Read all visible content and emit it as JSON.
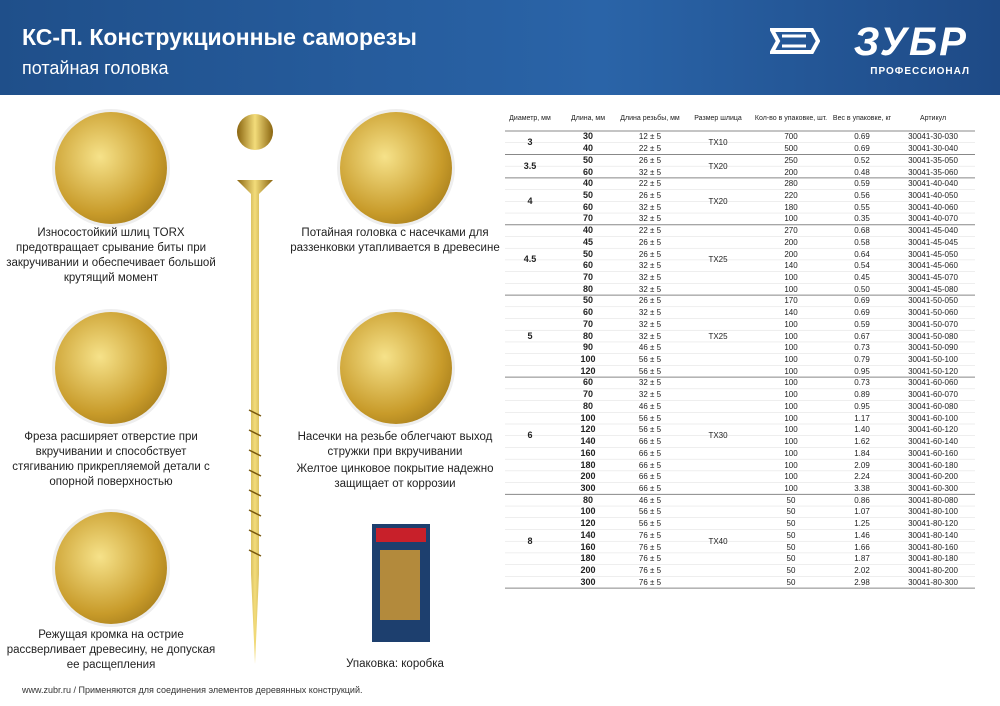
{
  "header": {
    "title": "КС-П. Конструкционные саморезы",
    "subtitle": "потайная головка",
    "brand": "ЗУБР",
    "brand_sub": "ПРОФЕССИОНАЛ"
  },
  "features": {
    "left": [
      "Износостойкий шлиц TORX предотвращает срывание биты при закручивании и обеспечивает большой крутящий момент",
      "Фреза расширяет отверстие при вкручивании и способствует стягиванию прикрепляемой детали с опорной поверхностью",
      "Режущая кромка на острие рассверливает древесину, не допуская ее расщепления"
    ],
    "right": [
      "Потайная головка с насечками для раззенковки утапливается в древесине",
      "Насечки на резьбе облегчают выход стружки при вкручивании",
      "Желтое цинковое покрытие надежно защищает от коррозии",
      "Упаковка: коробка"
    ]
  },
  "table": {
    "columns": [
      "Диаметр, мм",
      "Длина, мм",
      "Длина резьбы, мм",
      "Размер шлица",
      "Кол-во в упаковке, шт.",
      "Вес в упаковке, кг",
      "Артикул"
    ],
    "groups": [
      {
        "diameter": "3",
        "slot": "TX10",
        "rows": [
          [
            "30",
            "12 ± 5",
            "700",
            "0.69",
            "30041-30-030"
          ],
          [
            "40",
            "22 ± 5",
            "500",
            "0.69",
            "30041-30-040"
          ]
        ]
      },
      {
        "diameter": "3.5",
        "slot": "TX20",
        "rows": [
          [
            "50",
            "26 ± 5",
            "250",
            "0.52",
            "30041-35-050"
          ],
          [
            "60",
            "32 ± 5",
            "200",
            "0.48",
            "30041-35-060"
          ]
        ]
      },
      {
        "diameter": "4",
        "slot": "TX20",
        "rows": [
          [
            "40",
            "22 ± 5",
            "280",
            "0.59",
            "30041-40-040"
          ],
          [
            "50",
            "26 ± 5",
            "220",
            "0.56",
            "30041-40-050"
          ],
          [
            "60",
            "32 ± 5",
            "180",
            "0.55",
            "30041-40-060"
          ],
          [
            "70",
            "32 ± 5",
            "100",
            "0.35",
            "30041-40-070"
          ]
        ]
      },
      {
        "diameter": "4.5",
        "slot": "TX25",
        "rows": [
          [
            "40",
            "22 ± 5",
            "270",
            "0.68",
            "30041-45-040"
          ],
          [
            "45",
            "26 ± 5",
            "200",
            "0.58",
            "30041-45-045"
          ],
          [
            "50",
            "26 ± 5",
            "200",
            "0.64",
            "30041-45-050"
          ],
          [
            "60",
            "32 ± 5",
            "140",
            "0.54",
            "30041-45-060"
          ],
          [
            "70",
            "32 ± 5",
            "100",
            "0.45",
            "30041-45-070"
          ],
          [
            "80",
            "32 ± 5",
            "100",
            "0.50",
            "30041-45-080"
          ]
        ]
      },
      {
        "diameter": "5",
        "slot": "TX25",
        "rows": [
          [
            "50",
            "26 ± 5",
            "170",
            "0.69",
            "30041-50-050"
          ],
          [
            "60",
            "32 ± 5",
            "140",
            "0.69",
            "30041-50-060"
          ],
          [
            "70",
            "32 ± 5",
            "100",
            "0.59",
            "30041-50-070"
          ],
          [
            "80",
            "32 ± 5",
            "100",
            "0.67",
            "30041-50-080"
          ],
          [
            "90",
            "46 ± 5",
            "100",
            "0.73",
            "30041-50-090"
          ],
          [
            "100",
            "56 ± 5",
            "100",
            "0.79",
            "30041-50-100"
          ],
          [
            "120",
            "56 ± 5",
            "100",
            "0.95",
            "30041-50-120"
          ]
        ]
      },
      {
        "diameter": "6",
        "slot": "TX30",
        "rows": [
          [
            "60",
            "32 ± 5",
            "100",
            "0.73",
            "30041-60-060"
          ],
          [
            "70",
            "32 ± 5",
            "100",
            "0.89",
            "30041-60-070"
          ],
          [
            "80",
            "46 ± 5",
            "100",
            "0.95",
            "30041-60-080"
          ],
          [
            "100",
            "56 ± 5",
            "100",
            "1.17",
            "30041-60-100"
          ],
          [
            "120",
            "56 ± 5",
            "100",
            "1.40",
            "30041-60-120"
          ],
          [
            "140",
            "66 ± 5",
            "100",
            "1.62",
            "30041-60-140"
          ],
          [
            "160",
            "66 ± 5",
            "100",
            "1.84",
            "30041-60-160"
          ],
          [
            "180",
            "66 ± 5",
            "100",
            "2.09",
            "30041-60-180"
          ],
          [
            "200",
            "66 ± 5",
            "100",
            "2.24",
            "30041-60-200"
          ],
          [
            "300",
            "66 ± 5",
            "100",
            "3.38",
            "30041-60-300"
          ]
        ]
      },
      {
        "diameter": "8",
        "slot": "TX40",
        "rows": [
          [
            "80",
            "46 ± 5",
            "50",
            "0.86",
            "30041-80-080"
          ],
          [
            "100",
            "56 ± 5",
            "50",
            "1.07",
            "30041-80-100"
          ],
          [
            "120",
            "56 ± 5",
            "50",
            "1.25",
            "30041-80-120"
          ],
          [
            "140",
            "76 ± 5",
            "50",
            "1.46",
            "30041-80-140"
          ],
          [
            "160",
            "76 ± 5",
            "50",
            "1.66",
            "30041-80-160"
          ],
          [
            "180",
            "76 ± 5",
            "50",
            "1.87",
            "30041-80-180"
          ],
          [
            "200",
            "76 ± 5",
            "50",
            "2.02",
            "30041-80-200"
          ],
          [
            "300",
            "76 ± 5",
            "50",
            "2.98",
            "30041-80-300"
          ]
        ]
      }
    ]
  },
  "footer": {
    "url": "www.zubr.ru",
    "note": "Применяются для соединения элементов деревянных конструкций."
  }
}
